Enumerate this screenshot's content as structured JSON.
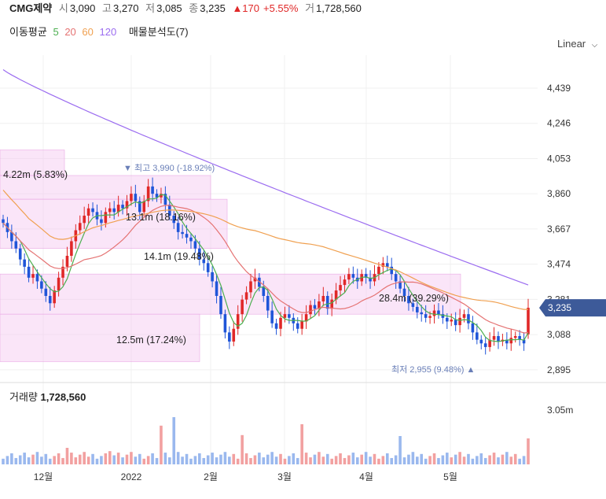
{
  "header": {
    "name": "CMG제약",
    "open_label": "시",
    "open": "3,090",
    "high_label": "고",
    "high": "3,270",
    "low_label": "저",
    "low": "3,085",
    "close_label": "종",
    "close": "3,235",
    "change": "▲170",
    "change_pct": "+5.55%",
    "volume_label": "거",
    "volume": "1,728,560"
  },
  "ma": {
    "title": "이동평균",
    "p5": "5",
    "p20": "20",
    "p60": "60",
    "p120": "120",
    "analysis": "매물분석도(7)"
  },
  "scale_toggle": "Linear",
  "current_price_tag": "3,235",
  "volume_panel": {
    "title": "거래량",
    "value": "1,728,560",
    "axis_label": "3.05m"
  },
  "annotations": {
    "high": "▼ 최고 3,990 (-18.92%)",
    "low": "최저 2,955 (9.48%) ▲"
  },
  "colors": {
    "up": "#e02828",
    "down": "#1f55d8",
    "ma5": "#4caf50",
    "ma20": "#e57373",
    "ma60": "#f0a050",
    "ma120": "#9b6cf0",
    "profile": "#f3c6f0",
    "tag": "#3d5a99"
  },
  "chart_data": {
    "type": "candlestick",
    "y_ticks": [
      "4,439",
      "4,246",
      "4,053",
      "3,860",
      "3,667",
      "3,474",
      "3,281",
      "3,088",
      "2,895"
    ],
    "x_ticks": [
      "12월",
      "2022",
      "2월",
      "3월",
      "4월",
      "5월"
    ],
    "ylim": [
      2860,
      4620
    ],
    "volume_profile": [
      {
        "label": "4.22m (5.83%)",
        "low": 3960,
        "high": 4100,
        "pct": 5.83
      },
      {
        "label": "13.1m (18.16%)",
        "low": 3830,
        "high": 3960,
        "pct": 18.16
      },
      {
        "label": "14.1m (19.48%)",
        "low": 3560,
        "high": 3830,
        "pct": 19.48
      },
      {
        "label": "28.4m (39.29%)",
        "low": 3200,
        "high": 3420,
        "pct": 39.29
      },
      {
        "label": "12.5m (17.24%)",
        "low": 2940,
        "high": 3200,
        "pct": 17.24
      }
    ],
    "closes": [
      3700,
      3650,
      3600,
      3560,
      3500,
      3460,
      3400,
      3420,
      3380,
      3340,
      3300,
      3260,
      3330,
      3400,
      3460,
      3520,
      3600,
      3660,
      3700,
      3740,
      3780,
      3760,
      3720,
      3700,
      3760,
      3780,
      3760,
      3800,
      3780,
      3820,
      3860,
      3820,
      3760,
      3820,
      3900,
      3860,
      3840,
      3860,
      3800,
      3740,
      3700,
      3650,
      3640,
      3620,
      3600,
      3560,
      3500,
      3480,
      3430,
      3380,
      3300,
      3200,
      3100,
      3050,
      3120,
      3200,
      3280,
      3320,
      3380,
      3400,
      3350,
      3300,
      3220,
      3150,
      3120,
      3180,
      3200,
      3180,
      3150,
      3120,
      3160,
      3200,
      3250,
      3230,
      3270,
      3300,
      3230,
      3280,
      3330,
      3360,
      3390,
      3420,
      3400,
      3380,
      3420,
      3400,
      3380,
      3420,
      3460,
      3480,
      3460,
      3420,
      3380,
      3340,
      3300,
      3260,
      3240,
      3210,
      3200,
      3180,
      3190,
      3220,
      3200,
      3180,
      3160,
      3170,
      3140,
      3180,
      3200,
      3150,
      3100,
      3060,
      3040,
      3020,
      3060,
      3080,
      3050,
      3060,
      3040,
      3070,
      3080,
      3060,
      3040,
      3235
    ],
    "volume_yticks": [
      "3.05m"
    ]
  }
}
